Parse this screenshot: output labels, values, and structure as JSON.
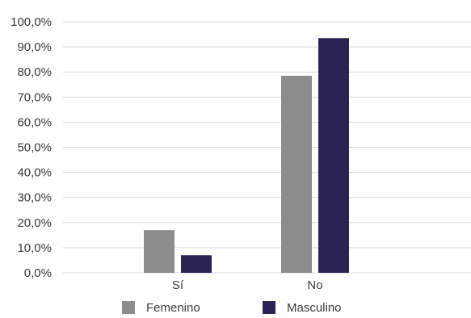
{
  "chart_data": {
    "type": "bar",
    "categories": [
      "Sí",
      "No"
    ],
    "series": [
      {
        "name": "Femenino",
        "values": [
          17.0,
          78.5
        ],
        "color": "#8c8c8c"
      },
      {
        "name": "Masculino",
        "values": [
          7.0,
          93.5
        ],
        "color": "#2b2452"
      }
    ],
    "ylim": [
      0,
      100
    ],
    "y_ticks": [
      "0,0%",
      "10,0%",
      "20,0%",
      "30,0%",
      "40,0%",
      "50,0%",
      "60,0%",
      "70,0%",
      "80,0%",
      "90,0%",
      "100,0%"
    ],
    "grid": true,
    "grid_color": "#d9d9d9",
    "legend_position": "bottom"
  }
}
